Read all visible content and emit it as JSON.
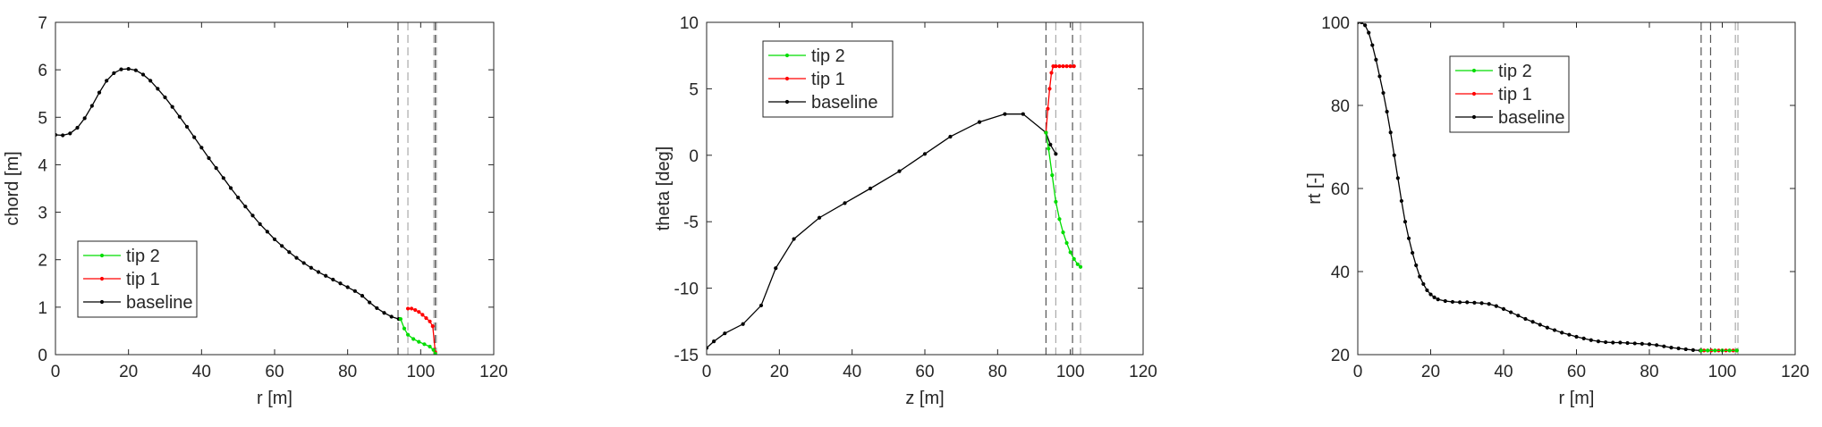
{
  "chart_data": [
    {
      "type": "line",
      "xlabel": "r [m]",
      "ylabel": "chord [m]",
      "xlim": [
        0,
        120
      ],
      "ylim": [
        0,
        7
      ],
      "xticks": [
        0,
        20,
        40,
        60,
        80,
        100,
        120
      ],
      "yticks": [
        0,
        1,
        2,
        3,
        4,
        5,
        6,
        7
      ],
      "legend": "bottom-left",
      "vlines": [
        {
          "x": 93.8,
          "color": "#555555"
        },
        {
          "x": 96.5,
          "color": "#aaaaaa"
        },
        {
          "x": 103.6,
          "color": "#aaaaaa"
        },
        {
          "x": 104.0,
          "color": "#555555"
        },
        {
          "x": 104.3,
          "color": "#aaaaaa"
        }
      ],
      "series": [
        {
          "name": "tip 2",
          "color": "#00dd00",
          "x": [
            94.5,
            95.5,
            96.5,
            98,
            99.5,
            101,
            102.5,
            103.5,
            104
          ],
          "y": [
            0.75,
            0.55,
            0.42,
            0.33,
            0.27,
            0.22,
            0.17,
            0.1,
            0.02
          ]
        },
        {
          "name": "tip 1",
          "color": "#ff0000",
          "x": [
            96.5,
            97.5,
            98.5,
            99.5,
            100.5,
            101.5,
            102.5,
            103.3,
            104
          ],
          "y": [
            0.97,
            0.97,
            0.94,
            0.9,
            0.84,
            0.77,
            0.7,
            0.6,
            0.05
          ]
        },
        {
          "name": "baseline",
          "color": "#000000",
          "x": [
            0,
            2,
            4,
            6,
            8,
            10,
            12,
            14,
            16,
            18,
            20,
            22,
            24,
            26,
            28,
            30,
            32,
            34,
            36,
            38,
            40,
            42,
            44,
            46,
            48,
            50,
            52,
            54,
            56,
            58,
            60,
            62,
            64,
            66,
            68,
            70,
            72,
            74,
            76,
            78,
            80,
            82,
            84,
            86,
            88,
            90,
            92,
            94
          ],
          "y": [
            4.63,
            4.62,
            4.66,
            4.78,
            4.98,
            5.24,
            5.52,
            5.77,
            5.93,
            6.01,
            6.02,
            5.99,
            5.9,
            5.77,
            5.6,
            5.42,
            5.22,
            5.01,
            4.8,
            4.58,
            4.36,
            4.14,
            3.93,
            3.72,
            3.51,
            3.31,
            3.12,
            2.93,
            2.75,
            2.59,
            2.43,
            2.29,
            2.16,
            2.04,
            1.93,
            1.83,
            1.74,
            1.66,
            1.58,
            1.5,
            1.42,
            1.34,
            1.24,
            1.1,
            0.98,
            0.88,
            0.8,
            0.75
          ]
        }
      ]
    },
    {
      "type": "line",
      "xlabel": "z [m]",
      "ylabel": "theta [deg]",
      "xlim": [
        0,
        120
      ],
      "ylim": [
        -15,
        10
      ],
      "xticks": [
        0,
        20,
        40,
        60,
        80,
        100,
        120
      ],
      "yticks": [
        -15,
        -10,
        -5,
        0,
        5,
        10
      ],
      "legend": "top-left",
      "vlines": [
        {
          "x": 93.3,
          "color": "#555555"
        },
        {
          "x": 96.0,
          "color": "#aaaaaa"
        },
        {
          "x": 100.6,
          "color": "#555555"
        },
        {
          "x": 102.8,
          "color": "#aaaaaa"
        }
      ],
      "series": [
        {
          "name": "tip 2",
          "color": "#00dd00",
          "x": [
            93.3,
            94,
            95,
            96,
            97,
            98,
            99,
            100,
            101,
            102,
            102.8
          ],
          "y": [
            1.7,
            0.5,
            -1.5,
            -3.5,
            -4.8,
            -5.8,
            -6.6,
            -7.3,
            -7.8,
            -8.2,
            -8.4
          ]
        },
        {
          "name": "tip 1",
          "color": "#ff0000",
          "x": [
            93.3,
            93.8,
            94.3,
            94.8,
            95.3,
            96,
            97,
            98,
            99,
            100,
            101
          ],
          "y": [
            1.7,
            3.5,
            5.0,
            6.2,
            6.7,
            6.7,
            6.7,
            6.7,
            6.7,
            6.7,
            6.7
          ]
        },
        {
          "name": "baseline",
          "color": "#000000",
          "x": [
            0,
            2,
            5,
            10,
            15,
            19,
            24,
            31,
            38,
            45,
            53,
            60,
            67,
            75,
            82,
            87,
            93.3,
            94.5,
            96
          ],
          "y": [
            -14.5,
            -14.0,
            -13.4,
            -12.7,
            -11.3,
            -8.5,
            -6.3,
            -4.7,
            -3.6,
            -2.5,
            -1.2,
            0.1,
            1.4,
            2.5,
            3.1,
            3.1,
            1.7,
            0.8,
            0.1
          ]
        }
      ]
    },
    {
      "type": "line",
      "xlabel": "r [m]",
      "ylabel": "rt [-]",
      "xlim": [
        0,
        120
      ],
      "ylim": [
        20,
        100
      ],
      "xticks": [
        0,
        20,
        40,
        60,
        80,
        100,
        120
      ],
      "yticks": [
        20,
        40,
        60,
        80,
        100
      ],
      "legend": "top-left",
      "vlines": [
        {
          "x": 94.2,
          "color": "#555555"
        },
        {
          "x": 96.8,
          "color": "#555555"
        },
        {
          "x": 103.6,
          "color": "#aaaaaa"
        },
        {
          "x": 104.3,
          "color": "#aaaaaa"
        }
      ],
      "series": [
        {
          "name": "tip 2",
          "color": "#00dd00",
          "x": [
            94.2,
            96,
            98,
            100,
            102,
            104
          ],
          "y": [
            21.0,
            21.0,
            21.0,
            21.0,
            21.0,
            21.0
          ]
        },
        {
          "name": "tip 1",
          "color": "#ff0000",
          "x": [
            94.2,
            95,
            96,
            97,
            98,
            99,
            100,
            101,
            102,
            103,
            104
          ],
          "y": [
            21.0,
            21.0,
            21.0,
            21.0,
            21.0,
            21.0,
            21.0,
            21.0,
            21.0,
            21.0,
            21.0
          ]
        },
        {
          "name": "baseline",
          "color": "#000000",
          "x": [
            0,
            1,
            2,
            3,
            4,
            5,
            6,
            7,
            8,
            9,
            10,
            11,
            12,
            13,
            14,
            15,
            16,
            17,
            18,
            19,
            20,
            21,
            22,
            24,
            26,
            28,
            30,
            32,
            34,
            36,
            38,
            40,
            42,
            44,
            46,
            48,
            50,
            52,
            54,
            56,
            58,
            60,
            62,
            64,
            66,
            68,
            70,
            72,
            74,
            76,
            78,
            80,
            82,
            84,
            86,
            88,
            90,
            92,
            94
          ],
          "y": [
            100,
            100,
            99.3,
            97.5,
            94.5,
            91,
            87,
            83,
            78.5,
            73.5,
            68,
            62.5,
            57,
            52,
            48,
            44.5,
            41.5,
            38.8,
            37,
            35.5,
            34.5,
            33.8,
            33.3,
            32.9,
            32.7,
            32.6,
            32.6,
            32.5,
            32.4,
            32.2,
            31.7,
            31.0,
            30.2,
            29.4,
            28.6,
            27.9,
            27.2,
            26.5,
            25.9,
            25.3,
            24.8,
            24.3,
            23.9,
            23.5,
            23.2,
            23.0,
            22.9,
            22.9,
            22.8,
            22.7,
            22.6,
            22.5,
            22.3,
            22.0,
            21.7,
            21.5,
            21.3,
            21.1,
            21.0
          ]
        }
      ]
    }
  ]
}
